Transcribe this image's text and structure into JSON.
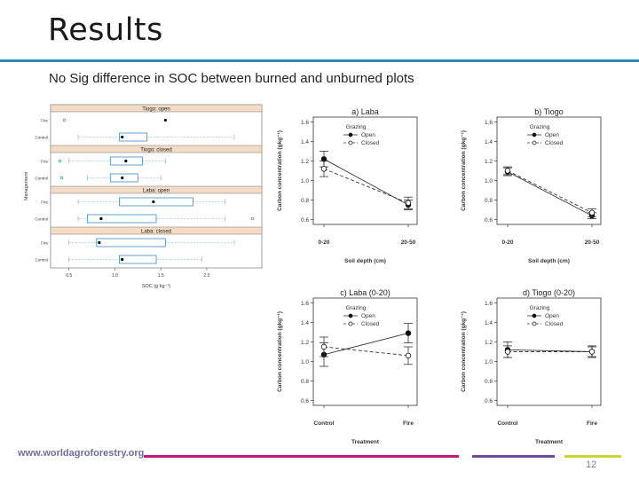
{
  "slide": {
    "title": "Results",
    "subtitle": "No Sig difference in SOC between burned and unburned plots",
    "footer_url": "www.worldagroforestry.org",
    "page_number": "12",
    "colors": {
      "accent_rule": "#2b8ab5",
      "footer_magenta": "#c2187a",
      "footer_purple": "#6e4a9e",
      "footer_lime": "#c8d631",
      "strip_fill": "#f4dcc4"
    }
  },
  "chart_data": [
    {
      "type": "boxplot",
      "ylabel": "Management",
      "xlabel": "SOC (g kg⁻¹)",
      "xticks": [
        "0.5",
        "1.0",
        "1.5",
        "2.0"
      ],
      "xlim": [
        0.3,
        2.6
      ],
      "panels": [
        {
          "name": "Tiogo: open",
          "rows": [
            {
              "label": "Fire",
              "box": null,
              "median": null,
              "mean": 1.55,
              "points": [
                0.45
              ]
            },
            {
              "label": "Control",
              "box": [
                1.05,
                1.35
              ],
              "median": 1.2,
              "mean": 1.08,
              "whiskers": [
                0.6,
                2.3
              ],
              "points": []
            }
          ]
        },
        {
          "name": "Tiogo: closed",
          "rows": [
            {
              "label": "Fire",
              "box": [
                0.95,
                1.3
              ],
              "median": 1.15,
              "mean": 1.12,
              "whiskers": [
                0.5,
                1.55
              ],
              "points": [
                0.4
              ]
            },
            {
              "label": "Control",
              "box": [
                0.95,
                1.25
              ],
              "median": 1.1,
              "mean": 1.08,
              "whiskers": [
                0.7,
                1.5
              ],
              "points": [
                0.42
              ]
            }
          ]
        },
        {
          "name": "Laba: open",
          "rows": [
            {
              "label": "Fire",
              "box": [
                1.05,
                1.85
              ],
              "median": 1.4,
              "mean": 1.42,
              "whiskers": [
                0.6,
                2.2
              ],
              "points": []
            },
            {
              "label": "Control",
              "box": [
                0.7,
                1.45
              ],
              "median": 0.85,
              "mean": 0.85,
              "whiskers": [
                0.6,
                2.2
              ],
              "points": [
                2.5
              ]
            }
          ]
        },
        {
          "name": "Laba: closed",
          "rows": [
            {
              "label": "Fire",
              "box": [
                0.8,
                1.55
              ],
              "median": 0.85,
              "mean": 0.83,
              "whiskers": [
                0.5,
                2.3
              ],
              "points": []
            },
            {
              "label": "Control",
              "box": [
                1.05,
                1.45
              ],
              "median": 1.12,
              "mean": 1.08,
              "whiskers": [
                0.5,
                1.95
              ],
              "points": []
            }
          ]
        }
      ]
    },
    {
      "type": "line",
      "title": "a) Laba",
      "xlabel": "Soil depth (cm)",
      "ylabel": "Carbon concentration (gkg⁻¹)",
      "categories": [
        "0-20",
        "20-50"
      ],
      "ylim": [
        0.55,
        1.65
      ],
      "yticks": [
        "0.6",
        "0.8",
        "1.0",
        "1.2",
        "1.4",
        "1.6"
      ],
      "legend_title": "Grazing",
      "series": [
        {
          "name": "Open",
          "values": [
            1.22,
            0.75
          ],
          "errors": [
            0.08,
            0.05
          ],
          "style": "solid"
        },
        {
          "name": "Closed",
          "values": [
            1.12,
            0.77
          ],
          "errors": [
            0.08,
            0.06
          ],
          "style": "dashed"
        }
      ]
    },
    {
      "type": "line",
      "title": "b) Tiogo",
      "xlabel": "Soil depth (cm)",
      "ylabel": "Carbon concentration (gkg⁻¹)",
      "categories": [
        "0-20",
        "20-50"
      ],
      "ylim": [
        0.55,
        1.65
      ],
      "yticks": [
        "0.6",
        "0.8",
        "1.0",
        "1.2",
        "1.4",
        "1.6"
      ],
      "legend_title": "Grazing",
      "series": [
        {
          "name": "Open",
          "values": [
            1.09,
            0.64
          ],
          "errors": [
            0.04,
            0.03
          ],
          "style": "solid"
        },
        {
          "name": "Closed",
          "values": [
            1.1,
            0.67
          ],
          "errors": [
            0.04,
            0.04
          ],
          "style": "dashed"
        }
      ]
    },
    {
      "type": "line",
      "title": "c) Laba (0-20)",
      "xlabel": "Treatment",
      "ylabel": "Carbon concentration (gkg⁻¹)",
      "categories": [
        "Control",
        "Fire"
      ],
      "ylim": [
        0.55,
        1.65
      ],
      "yticks": [
        "0.6",
        "0.8",
        "1.0",
        "1.2",
        "1.4",
        "1.6"
      ],
      "legend_title": "Grazing",
      "series": [
        {
          "name": "Open",
          "values": [
            1.07,
            1.29
          ],
          "errors": [
            0.12,
            0.1
          ],
          "style": "solid"
        },
        {
          "name": "Closed",
          "values": [
            1.15,
            1.06
          ],
          "errors": [
            0.1,
            0.09
          ],
          "style": "dashed"
        }
      ]
    },
    {
      "type": "line",
      "title": "d) Tiogo (0-20)",
      "xlabel": "Treatment",
      "ylabel": "Carbon concentration (gkg⁻¹)",
      "categories": [
        "Control",
        "Fire"
      ],
      "ylim": [
        0.55,
        1.65
      ],
      "yticks": [
        "0.6",
        "0.8",
        "1.0",
        "1.2",
        "1.4",
        "1.6"
      ],
      "legend_title": "Grazing",
      "series": [
        {
          "name": "Open",
          "values": [
            1.12,
            1.1
          ],
          "errors": [
            0.08,
            0.05
          ],
          "style": "solid"
        },
        {
          "name": "Closed",
          "values": [
            1.1,
            1.1
          ],
          "errors": [
            0.06,
            0.06
          ],
          "style": "dashed"
        }
      ]
    }
  ]
}
